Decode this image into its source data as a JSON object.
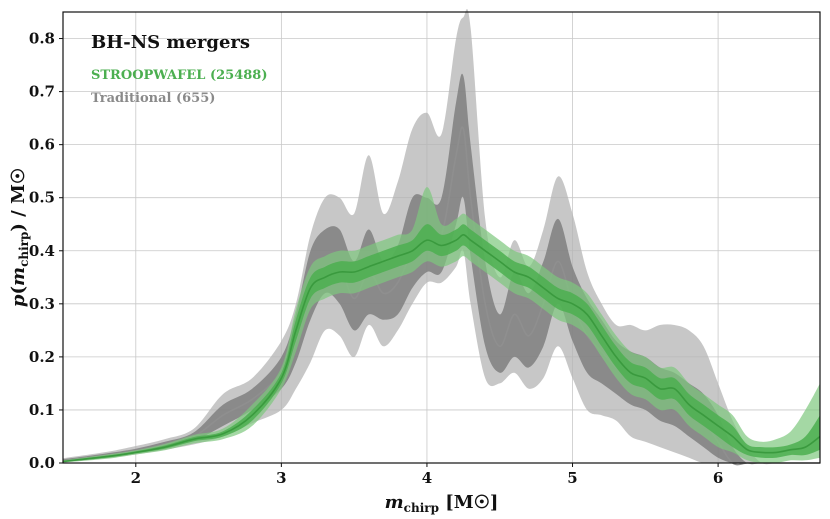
{
  "chart_data": {
    "type": "area",
    "title": "",
    "legend": {
      "title": "BH-NS mergers",
      "placement": "top-left",
      "entries": [
        {
          "label": "STROOPWAFEL (25488)",
          "color": "#4caf50"
        },
        {
          "label": "Traditional (655)",
          "color": "#8a8a8a"
        }
      ]
    },
    "xlabel": "m_chirp [M_☉]",
    "ylabel": "p(m_chirp) / M_☉",
    "xlim": [
      1.5,
      6.7
    ],
    "ylim": [
      0.0,
      0.85
    ],
    "xticks": [
      2,
      3,
      4,
      5,
      6
    ],
    "yticks": [
      0.0,
      0.1,
      0.2,
      0.3,
      0.4,
      0.5,
      0.6,
      0.7,
      0.8
    ],
    "xtick_labels": [
      "2",
      "3",
      "4",
      "5",
      "6"
    ],
    "ytick_labels": [
      "0.0",
      "0.1",
      "0.2",
      "0.3",
      "0.4",
      "0.5",
      "0.6",
      "0.7",
      "0.8"
    ],
    "grid": true,
    "x": [
      1.5,
      1.8,
      2.0,
      2.2,
      2.4,
      2.6,
      2.8,
      3.0,
      3.1,
      3.2,
      3.3,
      3.4,
      3.5,
      3.6,
      3.7,
      3.8,
      3.9,
      4.0,
      4.1,
      4.2,
      4.25,
      4.3,
      4.4,
      4.5,
      4.6,
      4.7,
      4.8,
      4.9,
      5.0,
      5.1,
      5.2,
      5.3,
      5.4,
      5.5,
      5.6,
      5.7,
      5.8,
      5.9,
      6.0,
      6.1,
      6.2,
      6.3,
      6.4,
      6.5,
      6.6,
      6.7
    ],
    "series": [
      {
        "name": "Traditional (655)",
        "color": "#8a8a8a",
        "median": [
          0.005,
          0.015,
          0.023,
          0.035,
          0.05,
          0.09,
          0.12,
          0.17,
          0.23,
          0.33,
          0.37,
          0.37,
          0.31,
          0.36,
          0.32,
          0.34,
          0.4,
          0.43,
          0.43,
          0.58,
          0.63,
          0.5,
          0.3,
          0.22,
          0.28,
          0.24,
          0.3,
          0.38,
          0.3,
          0.24,
          0.21,
          0.18,
          0.16,
          0.15,
          0.13,
          0.12,
          0.1,
          0.08,
          0.04,
          0.0,
          0.0,
          0.0,
          0.0,
          0.0,
          0.0,
          0.0
        ],
        "inner_low": [
          0.003,
          0.012,
          0.02,
          0.03,
          0.042,
          0.07,
          0.1,
          0.14,
          0.19,
          0.27,
          0.32,
          0.3,
          0.25,
          0.28,
          0.27,
          0.28,
          0.33,
          0.36,
          0.36,
          0.45,
          0.5,
          0.39,
          0.22,
          0.17,
          0.2,
          0.18,
          0.22,
          0.3,
          0.23,
          0.17,
          0.15,
          0.13,
          0.11,
          0.1,
          0.08,
          0.07,
          0.05,
          0.03,
          0.01,
          0.0,
          0.0,
          0.0,
          0.0,
          0.0,
          0.0,
          0.0
        ],
        "inner_high": [
          0.007,
          0.018,
          0.027,
          0.04,
          0.058,
          0.11,
          0.14,
          0.2,
          0.28,
          0.4,
          0.44,
          0.44,
          0.38,
          0.44,
          0.38,
          0.41,
          0.5,
          0.5,
          0.5,
          0.68,
          0.73,
          0.6,
          0.38,
          0.28,
          0.36,
          0.32,
          0.38,
          0.46,
          0.37,
          0.31,
          0.27,
          0.23,
          0.21,
          0.2,
          0.18,
          0.17,
          0.15,
          0.13,
          0.09,
          0.03,
          0.0,
          0.0,
          0.0,
          0.0,
          0.0,
          0.0
        ],
        "outer_low": [
          0.001,
          0.009,
          0.016,
          0.025,
          0.035,
          0.05,
          0.075,
          0.1,
          0.14,
          0.19,
          0.25,
          0.24,
          0.2,
          0.26,
          0.22,
          0.25,
          0.3,
          0.34,
          0.34,
          0.37,
          0.4,
          0.3,
          0.16,
          0.15,
          0.17,
          0.14,
          0.16,
          0.22,
          0.16,
          0.1,
          0.09,
          0.08,
          0.05,
          0.04,
          0.03,
          0.02,
          0.01,
          0.0,
          0.0,
          0.0,
          0.0,
          0.0,
          0.0,
          0.0,
          0.0,
          0.0
        ],
        "outer_high": [
          0.009,
          0.021,
          0.032,
          0.045,
          0.065,
          0.13,
          0.16,
          0.23,
          0.3,
          0.43,
          0.5,
          0.5,
          0.47,
          0.58,
          0.47,
          0.53,
          0.63,
          0.66,
          0.62,
          0.8,
          0.84,
          0.82,
          0.46,
          0.35,
          0.42,
          0.37,
          0.44,
          0.54,
          0.47,
          0.36,
          0.3,
          0.26,
          0.26,
          0.25,
          0.26,
          0.26,
          0.25,
          0.22,
          0.15,
          0.08,
          0.03,
          0.0,
          0.0,
          0.0,
          0.0,
          0.0
        ]
      },
      {
        "name": "STROOPWAFEL (25488)",
        "color": "#4caf50",
        "median": [
          0.003,
          0.012,
          0.02,
          0.03,
          0.045,
          0.055,
          0.09,
          0.16,
          0.25,
          0.33,
          0.35,
          0.36,
          0.36,
          0.37,
          0.38,
          0.39,
          0.4,
          0.42,
          0.41,
          0.42,
          0.43,
          0.42,
          0.4,
          0.38,
          0.36,
          0.35,
          0.33,
          0.31,
          0.3,
          0.28,
          0.24,
          0.2,
          0.17,
          0.16,
          0.14,
          0.14,
          0.11,
          0.09,
          0.07,
          0.05,
          0.025,
          0.02,
          0.02,
          0.025,
          0.03,
          0.05
        ],
        "inner_low": [
          0.002,
          0.01,
          0.018,
          0.027,
          0.041,
          0.05,
          0.08,
          0.15,
          0.23,
          0.31,
          0.33,
          0.34,
          0.34,
          0.35,
          0.36,
          0.37,
          0.38,
          0.4,
          0.39,
          0.4,
          0.41,
          0.4,
          0.38,
          0.36,
          0.34,
          0.33,
          0.31,
          0.29,
          0.28,
          0.26,
          0.22,
          0.18,
          0.15,
          0.14,
          0.12,
          0.12,
          0.09,
          0.07,
          0.05,
          0.03,
          0.015,
          0.01,
          0.01,
          0.015,
          0.015,
          0.025
        ],
        "inner_high": [
          0.004,
          0.014,
          0.022,
          0.033,
          0.049,
          0.06,
          0.1,
          0.17,
          0.27,
          0.35,
          0.37,
          0.38,
          0.38,
          0.39,
          0.4,
          0.41,
          0.42,
          0.45,
          0.43,
          0.44,
          0.45,
          0.44,
          0.42,
          0.4,
          0.38,
          0.37,
          0.35,
          0.33,
          0.32,
          0.3,
          0.26,
          0.22,
          0.19,
          0.18,
          0.16,
          0.16,
          0.13,
          0.11,
          0.09,
          0.07,
          0.035,
          0.03,
          0.03,
          0.035,
          0.05,
          0.09
        ],
        "outer_low": [
          0.001,
          0.008,
          0.016,
          0.024,
          0.037,
          0.045,
          0.07,
          0.14,
          0.21,
          0.29,
          0.31,
          0.32,
          0.32,
          0.33,
          0.34,
          0.35,
          0.36,
          0.38,
          0.37,
          0.38,
          0.39,
          0.38,
          0.36,
          0.34,
          0.32,
          0.31,
          0.29,
          0.27,
          0.26,
          0.24,
          0.2,
          0.16,
          0.13,
          0.12,
          0.1,
          0.1,
          0.07,
          0.05,
          0.03,
          0.02,
          0.005,
          0.0,
          0.0,
          0.005,
          0.005,
          0.01
        ],
        "outer_high": [
          0.005,
          0.016,
          0.024,
          0.036,
          0.053,
          0.065,
          0.11,
          0.18,
          0.29,
          0.37,
          0.39,
          0.4,
          0.4,
          0.41,
          0.42,
          0.43,
          0.44,
          0.52,
          0.45,
          0.46,
          0.47,
          0.46,
          0.44,
          0.42,
          0.4,
          0.39,
          0.37,
          0.35,
          0.34,
          0.32,
          0.28,
          0.24,
          0.21,
          0.2,
          0.18,
          0.18,
          0.15,
          0.13,
          0.11,
          0.09,
          0.05,
          0.04,
          0.045,
          0.06,
          0.1,
          0.15
        ]
      }
    ]
  }
}
